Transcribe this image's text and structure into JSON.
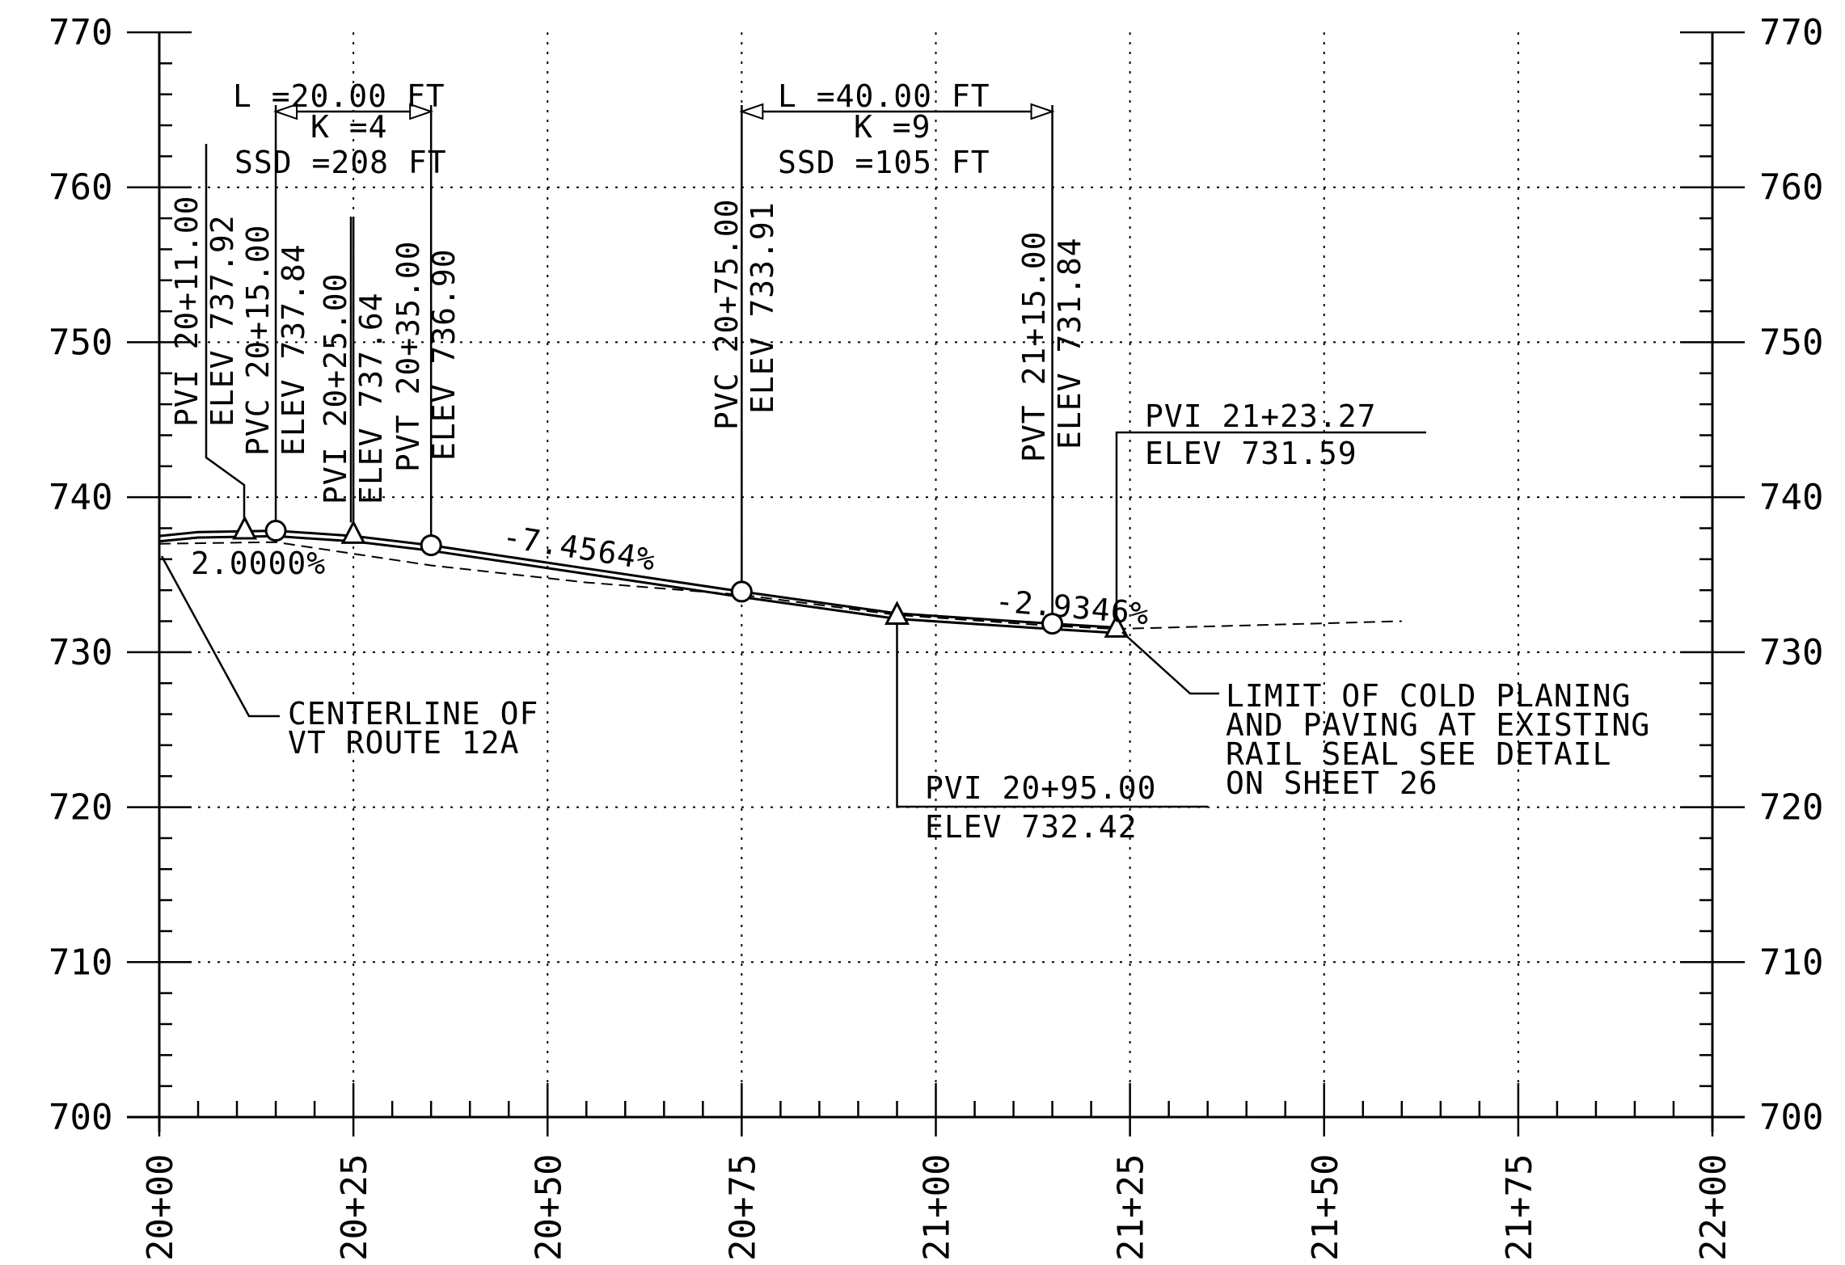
{
  "chart_data": {
    "type": "line",
    "title": "",
    "xlabel": "",
    "ylabel": "",
    "x_unit": "station_ft",
    "xlim": [
      2000,
      2200
    ],
    "ylim": [
      700,
      770
    ],
    "grid": true,
    "x_ticks": [
      {
        "value": 2000,
        "label": "20+00"
      },
      {
        "value": 2025,
        "label": "20+25"
      },
      {
        "value": 2050,
        "label": "20+50"
      },
      {
        "value": 2075,
        "label": "20+75"
      },
      {
        "value": 2100,
        "label": "21+00"
      },
      {
        "value": 2125,
        "label": "21+25"
      },
      {
        "value": 2150,
        "label": "21+50"
      },
      {
        "value": 2175,
        "label": "21+75"
      },
      {
        "value": 2200,
        "label": "22+00"
      }
    ],
    "y_ticks": [
      {
        "value": 770,
        "label": "770"
      },
      {
        "value": 760,
        "label": "760"
      },
      {
        "value": 750,
        "label": "750"
      },
      {
        "value": 740,
        "label": "740"
      },
      {
        "value": 730,
        "label": "730"
      },
      {
        "value": 720,
        "label": "720"
      },
      {
        "value": 710,
        "label": "710"
      },
      {
        "value": 700,
        "label": "700"
      }
    ],
    "proposed_profile": [
      {
        "x": 2000,
        "y": 737.5
      },
      {
        "x": 2005,
        "y": 737.75
      },
      {
        "x": 2015,
        "y": 737.84
      },
      {
        "x": 2025,
        "y": 737.5
      },
      {
        "x": 2035,
        "y": 736.9
      },
      {
        "x": 2055,
        "y": 735.4
      },
      {
        "x": 2075,
        "y": 733.91
      },
      {
        "x": 2095,
        "y": 732.5
      },
      {
        "x": 2115,
        "y": 731.84
      },
      {
        "x": 2123.27,
        "y": 731.59
      }
    ],
    "existing_ground": [
      {
        "x": 2000,
        "y": 737.0
      },
      {
        "x": 2015,
        "y": 737.1
      },
      {
        "x": 2035,
        "y": 735.6
      },
      {
        "x": 2055,
        "y": 734.5
      },
      {
        "x": 2075,
        "y": 733.7
      },
      {
        "x": 2095,
        "y": 732.4
      },
      {
        "x": 2115,
        "y": 731.7
      },
      {
        "x": 2123.27,
        "y": 731.5
      },
      {
        "x": 2160,
        "y": 732.0
      }
    ],
    "points": [
      {
        "kind": "pvi",
        "x": 2011,
        "y": 737.92,
        "labels": [
          "PVI 20+11.00",
          "ELEV 737.92"
        ]
      },
      {
        "kind": "pvc",
        "x": 2015,
        "y": 737.84,
        "labels": [
          "PVC 20+15.00",
          "ELEV 737.84"
        ]
      },
      {
        "kind": "pvi",
        "x": 2025,
        "y": 737.64,
        "labels": [
          "PVI 20+25.00",
          "ELEV 737.64"
        ]
      },
      {
        "kind": "pvt",
        "x": 2035,
        "y": 736.9,
        "labels": [
          "PVT 20+35.00",
          "ELEV 736.90"
        ]
      },
      {
        "kind": "pvc",
        "x": 2075,
        "y": 733.91,
        "labels": [
          "PVC 20+75.00",
          "ELEV 733.91"
        ]
      },
      {
        "kind": "pvi",
        "x": 2095,
        "y": 732.42,
        "labels": [
          "PVI 20+95.00",
          "ELEV 732.42"
        ]
      },
      {
        "kind": "pvt",
        "x": 2115,
        "y": 731.84,
        "labels": [
          "PVT 21+15.00",
          "ELEV 731.84"
        ]
      },
      {
        "kind": "pvi",
        "x": 2123.27,
        "y": 731.59,
        "labels": [
          "PVI 21+23.27",
          "ELEV 731.59"
        ]
      }
    ],
    "curves": [
      {
        "start": 2015,
        "end": 2035,
        "labels": [
          "L =20.00 FT",
          "K =4",
          "SSD =208 FT"
        ]
      },
      {
        "start": 2075,
        "end": 2115,
        "labels": [
          "L =40.00 FT",
          "K =9",
          "SSD =105 FT"
        ]
      }
    ],
    "grades": [
      "2.0000%",
      "-7.4564%",
      "-2.9346%"
    ],
    "annotations": [
      [
        "CENTERLINE OF",
        "VT ROUTE 12A"
      ],
      [
        "LIMIT OF COLD PLANING",
        "AND PAVING AT EXISTING",
        "RAIL SEAL SEE DETAIL",
        "ON SHEET 26"
      ]
    ]
  }
}
